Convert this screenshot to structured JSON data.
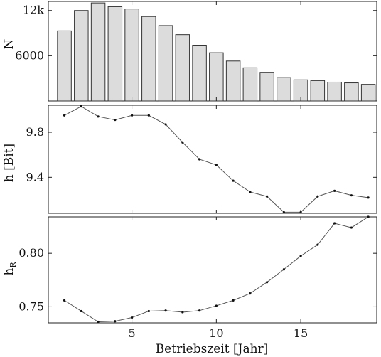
{
  "chart_data": [
    {
      "type": "bar",
      "ylabel": "N",
      "x": [
        1,
        2,
        3,
        4,
        5,
        6,
        7,
        8,
        9,
        10,
        11,
        12,
        13,
        14,
        15,
        16,
        17,
        18,
        19
      ],
      "values": [
        9300,
        12000,
        13000,
        12500,
        12200,
        11200,
        10000,
        8800,
        7400,
        6400,
        5300,
        4400,
        3800,
        3100,
        2800,
        2700,
        2500,
        2400,
        2200
      ],
      "xlim": [
        0.05,
        19.5
      ],
      "ylim": [
        0,
        13200
      ],
      "yticks": [
        6000,
        12000
      ],
      "ytick_labels": [
        "6000",
        "12k"
      ]
    },
    {
      "type": "line",
      "ylabel": "h [Bit]",
      "x": [
        1,
        2,
        3,
        4,
        5,
        6,
        7,
        8,
        9,
        10,
        11,
        12,
        13,
        14,
        15,
        16,
        17,
        18,
        19
      ],
      "values": [
        9.95,
        10.03,
        9.94,
        9.91,
        9.95,
        9.95,
        9.87,
        9.71,
        9.56,
        9.51,
        9.37,
        9.27,
        9.23,
        9.09,
        9.09,
        9.23,
        9.28,
        9.24,
        9.22
      ],
      "xlim": [
        0.05,
        19.5
      ],
      "ylim": [
        9.08,
        10.04
      ],
      "yticks": [
        9.4,
        9.8
      ],
      "ytick_labels": [
        "9.4",
        "9.8"
      ]
    },
    {
      "type": "line",
      "ylabel": "h_R",
      "ylabel_main": "h",
      "ylabel_sub": "R",
      "xlabel": "Betriebszeit [Jahr]",
      "x": [
        1,
        2,
        3,
        4,
        5,
        6,
        7,
        8,
        9,
        10,
        11,
        12,
        13,
        14,
        15,
        16,
        17,
        18,
        19
      ],
      "values": [
        0.756,
        0.746,
        0.736,
        0.7365,
        0.74,
        0.746,
        0.7465,
        0.745,
        0.7465,
        0.751,
        0.756,
        0.7625,
        0.773,
        0.785,
        0.7975,
        0.808,
        0.828,
        0.824,
        0.834
      ],
      "xlim": [
        0.05,
        19.5
      ],
      "ylim": [
        0.735,
        0.834
      ],
      "yticks": [
        0.75,
        0.8
      ],
      "ytick_labels": [
        "0.75",
        "0.80"
      ],
      "xticks": [
        5,
        10,
        15
      ],
      "xtick_labels": [
        "5",
        "10",
        "15"
      ]
    }
  ]
}
